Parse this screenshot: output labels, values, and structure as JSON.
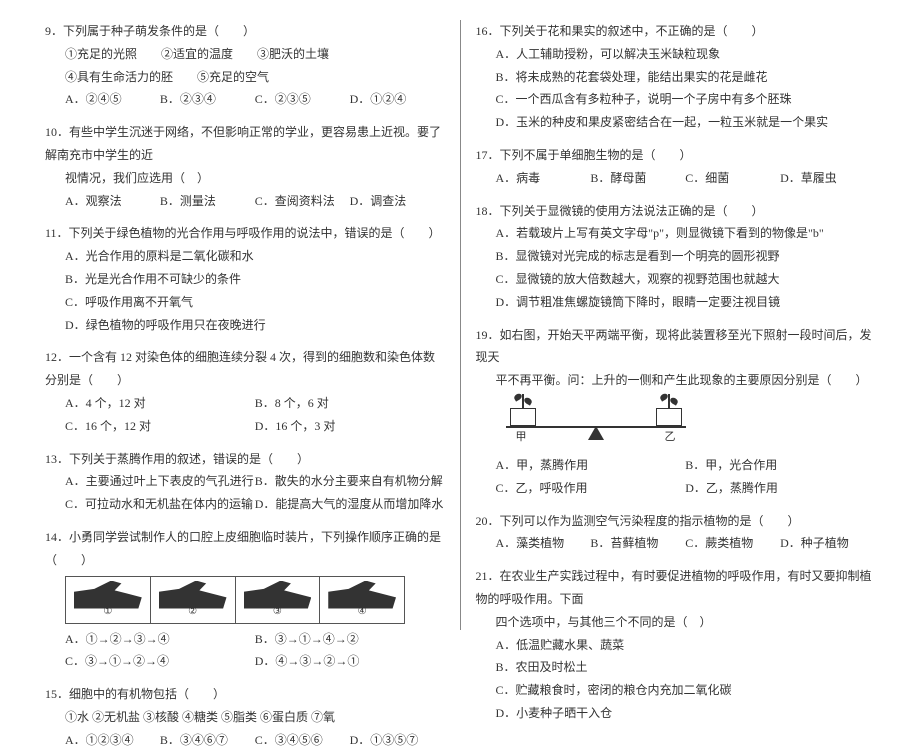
{
  "fontsize": 12,
  "text_color": "#333333",
  "background_color": "#ffffff",
  "divider_color": "#888888",
  "left": {
    "q9": {
      "stem": "9．下列属于种子萌发条件的是（　　）",
      "line1": "①充足的光照　　②适宜的温度　　③肥沃的土壤",
      "line2": "④具有生命活力的胚　　⑤充足的空气",
      "a": "A．②④⑤",
      "b": "B．②③④",
      "c": "C．②③⑤",
      "d": "D．①②④"
    },
    "q10": {
      "stem": "10．有些中学生沉迷于网络，不但影响正常的学业，更容易患上近视。要了解南充市中学生的近",
      "stem2": "视情况，我们应选用（　）",
      "a": "A．观察法",
      "b": "B．测量法",
      "c": "C．查阅资料法",
      "d": "D．调查法"
    },
    "q11": {
      "stem": "11．下列关于绿色植物的光合作用与呼吸作用的说法中，错误的是（　　）",
      "a": "A．光合作用的原料是二氧化碳和水",
      "b": "B．光是光合作用不可缺少的条件",
      "c": "C．呼吸作用离不开氧气",
      "d": "D．绿色植物的呼吸作用只在夜晚进行"
    },
    "q12": {
      "stem": "12．一个含有 12 对染色体的细胞连续分裂 4 次，得到的细胞数和染色体数分别是（　　）",
      "a": "A．4 个，12 对",
      "b": "B．8 个，6 对",
      "c": "C．16 个，12 对",
      "d": "D．16 个，3 对"
    },
    "q13": {
      "stem": "13．下列关于蒸腾作用的叙述，错误的是（　　）",
      "a": "A．主要通过叶上下表皮的气孔进行",
      "b": "B．散失的水分主要来自有机物分解",
      "c": "C．可拉动水和无机盐在体内的运输",
      "d": "D．能提高大气的湿度从而增加降水"
    },
    "q14": {
      "stem": "14．小勇同学尝试制作人的口腔上皮细胞临时装片，下列操作顺序正确的是（　　）",
      "cells": [
        "①",
        "②",
        "③",
        "④"
      ],
      "a": "A．①→②→③→④",
      "b": "B．③→①→④→②",
      "c": "C．③→①→②→④",
      "d": "D．④→③→②→①"
    },
    "q15": {
      "stem": "15．细胞中的有机物包括（　　）",
      "line1": "①水 ②无机盐 ③核酸 ④糖类 ⑤脂类 ⑥蛋白质 ⑦氧",
      "a": "A．①②③④",
      "b": "B．③④⑥⑦",
      "c": "C．③④⑤⑥",
      "d": "D．①③⑤⑦"
    }
  },
  "right": {
    "q16": {
      "stem": "16．下列关于花和果实的叙述中，不正确的是（　　）",
      "a": "A．人工辅助授粉，可以解决玉米缺粒现象",
      "b": "B．将未成熟的花套袋处理，能结出果实的花是雌花",
      "c": "C．一个西瓜含有多粒种子，说明一个子房中有多个胚珠",
      "d": "D．玉米的种皮和果皮紧密结合在一起，一粒玉米就是一个果实"
    },
    "q17": {
      "stem": "17．下列不属于单细胞生物的是（　　）",
      "a": "A．病毒",
      "b": "B．酵母菌",
      "c": "C．细菌",
      "d": "D．草履虫"
    },
    "q18": {
      "stem": "18．下列关于显微镜的使用方法说法正确的是（　　）",
      "a": "A．若载玻片上写有英文字母\"p\"，则显微镜下看到的物像是\"b\"",
      "b": "B．显微镜对光完成的标志是看到一个明亮的圆形视野",
      "c": "C．显微镜的放大倍数越大，观察的视野范围也就越大",
      "d": "D．调节粗准焦螺旋镜筒下降时，眼睛一定要注视目镜"
    },
    "q19": {
      "stem": "19．如右图，开始天平两端平衡，现将此装置移至光下照射一段时间后，发现天",
      "stem2": "平不再平衡。问：上升的一侧和产生此现象的主要原因分别是（　　）",
      "labelL": "甲",
      "labelR": "乙",
      "a": "A．甲，蒸腾作用",
      "b": "B．甲，光合作用",
      "c": "C．乙，呼吸作用",
      "d": "D．乙，蒸腾作用"
    },
    "q20": {
      "stem": "20．下列可以作为监测空气污染程度的指示植物的是（　　）",
      "a": "A．藻类植物",
      "b": "B．苔藓植物",
      "c": "C．蕨类植物",
      "d": "D．种子植物"
    },
    "q21": {
      "stem": "21．在农业生产实践过程中，有时要促进植物的呼吸作用，有时又要抑制植物的呼吸作用。下面",
      "stem2": "四个选项中，与其他三个不同的是（　）",
      "a": "A．低温贮藏水果、蔬菜",
      "b": "B．农田及时松土",
      "c": "C．贮藏粮食时，密闭的粮仓内充加二氧化碳",
      "d": "D．小麦种子晒干入仓"
    }
  }
}
